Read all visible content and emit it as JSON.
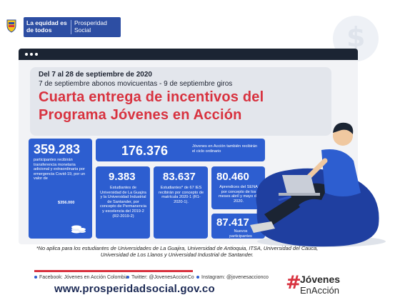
{
  "header": {
    "gov_label": "La equidad es de todos",
    "ps_label": "Prosperidad Social"
  },
  "panel": {
    "dates_line1": "Del 7 al 28 de septiembre de 2020",
    "dates_line2": "7 de septiembre abonos movicuentas - 9 de septiembre giros",
    "title_line1": "Cuarta entrega de incentivos del",
    "title_line2": "Programa Jóvenes en Acción"
  },
  "stats": {
    "s1": {
      "value": "359.283",
      "text": "participantes recibirán transferencia monetaria adicional y extraordinaria por emergencia Covid-19, por un valor de",
      "amount": "$356.000"
    },
    "s2": {
      "value": "176.376",
      "text": "Jóvenes en Acción también recibirán el ciclo ordinario"
    },
    "s3": {
      "value": "9.383",
      "text": "Estudiantes de Universidad de La Guajira y la Universidad Industrial de Santander, por concepto de Permanencia y excelencia del 2019-2 (R2-2019-2)"
    },
    "s4": {
      "value": "83.637",
      "text": "Estudiantes* de 67 IES recibirán por concepto de matrícula 2020-1 (R1-2020-1)."
    },
    "s5": {
      "value": "80.460",
      "text": "Aprendices del SENA por concepto de los meses abril y mayo de 2020."
    },
    "s6": {
      "value": "87.417",
      "text": "Nuevos participantes"
    }
  },
  "footnote": "*No aplica para los estudiantes de Universidades de La Guajira, Universidad de Antioquia, ITSA, Universidad del Cauca, Universidad de Los Llanos y Universidad Industrial de Santander.",
  "footer": {
    "facebook": "Facebook: Jóvenes en Acción Colombia",
    "twitter": "Twitter: @JovenesAccionCo",
    "instagram": "Instagram: @jovenesaccionco",
    "url": "www.prosperidadsocial.gov.co",
    "brand_hash": "#",
    "brand_line1": "Jóvenes",
    "brand_line2": "EnAcción"
  },
  "colors": {
    "blue": "#2d5ed0",
    "red": "#d8323f",
    "dark": "#1b2433"
  }
}
